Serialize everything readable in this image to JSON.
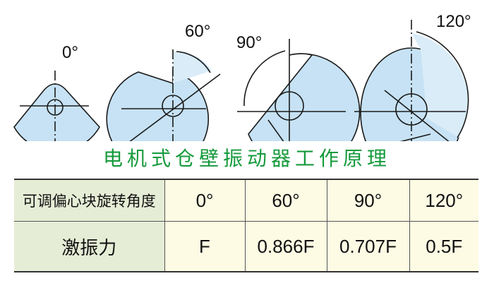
{
  "diagrams": [
    {
      "angle_label": "0°"
    },
    {
      "angle_label": "60°"
    },
    {
      "angle_label": "90°"
    },
    {
      "angle_label": "120°"
    }
  ],
  "title": "电机式仓壁振动器工作原理",
  "table": {
    "rows": [
      {
        "header": "可调偏心块旋转角度",
        "cells": [
          "0°",
          "60°",
          "90°",
          "120°"
        ]
      },
      {
        "header": "激振力",
        "cells": [
          "F",
          "0.866F",
          "0.707F",
          "0.5F"
        ]
      }
    ]
  },
  "colors": {
    "fill": "#c6e2f4",
    "title": "#169a3c",
    "header_bg": "#e6edd6",
    "cell_bg": "#fdfbe4"
  }
}
